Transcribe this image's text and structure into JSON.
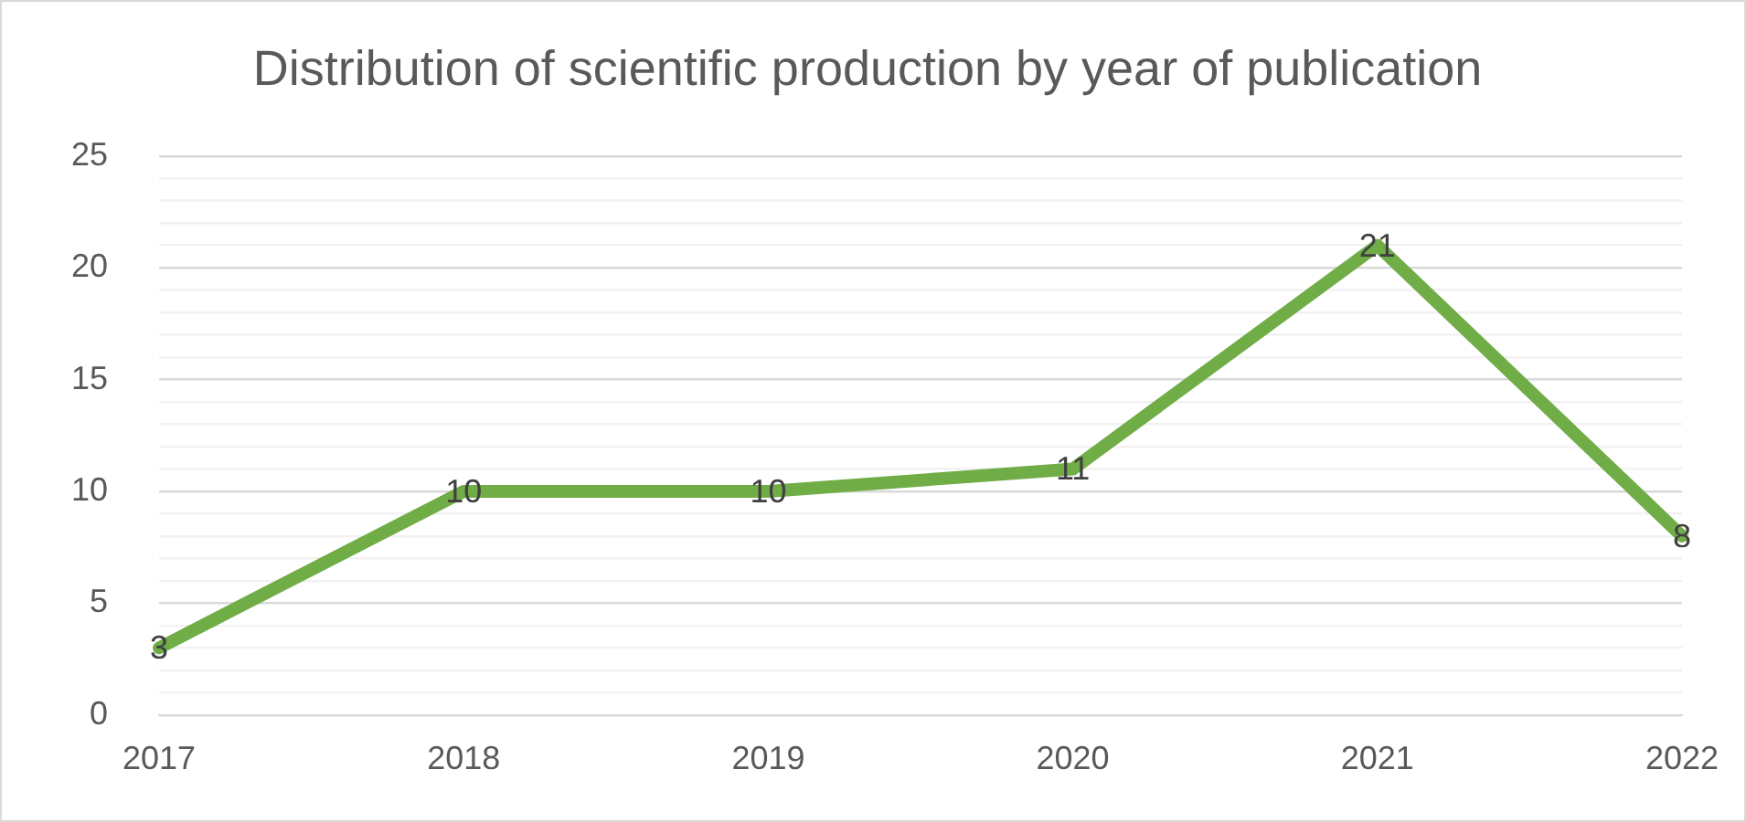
{
  "chart_data": {
    "type": "line",
    "title": "Distribution of scientific production by year of publication",
    "categories": [
      "2017",
      "2018",
      "2019",
      "2020",
      "2021",
      "2022"
    ],
    "series": [
      {
        "color": "#70ad47",
        "values": [
          3,
          10,
          10,
          11,
          21,
          8
        ]
      }
    ],
    "ylim": [
      0,
      25
    ],
    "yticks": [
      0,
      {
        "value": 1,
        "label": null
      },
      {
        "value": 2,
        "label": null
      },
      {
        "value": 3,
        "label": null
      },
      {
        "value": 4,
        "label": null
      },
      5,
      {
        "value": 6,
        "label": null
      },
      {
        "value": 7,
        "label": null
      },
      {
        "value": 8,
        "label": null
      },
      {
        "value": 9,
        "label": null
      },
      10,
      {
        "value": 11,
        "label": null
      },
      {
        "value": 12,
        "label": null
      },
      {
        "value": 13,
        "label": null
      },
      {
        "value": 14,
        "label": null
      },
      15,
      {
        "value": 16,
        "label": null
      },
      {
        "value": 17,
        "label": null
      },
      {
        "value": 18,
        "label": null
      },
      {
        "value": 19,
        "label": null
      },
      20,
      {
        "value": 21,
        "label": null
      },
      {
        "value": 22,
        "label": null
      },
      {
        "value": 23,
        "label": null
      },
      {
        "value": 24,
        "label": null
      },
      25
    ],
    "grid": "y",
    "legend": false,
    "marker": "none",
    "line_style": "solid",
    "data_labels": true
  }
}
